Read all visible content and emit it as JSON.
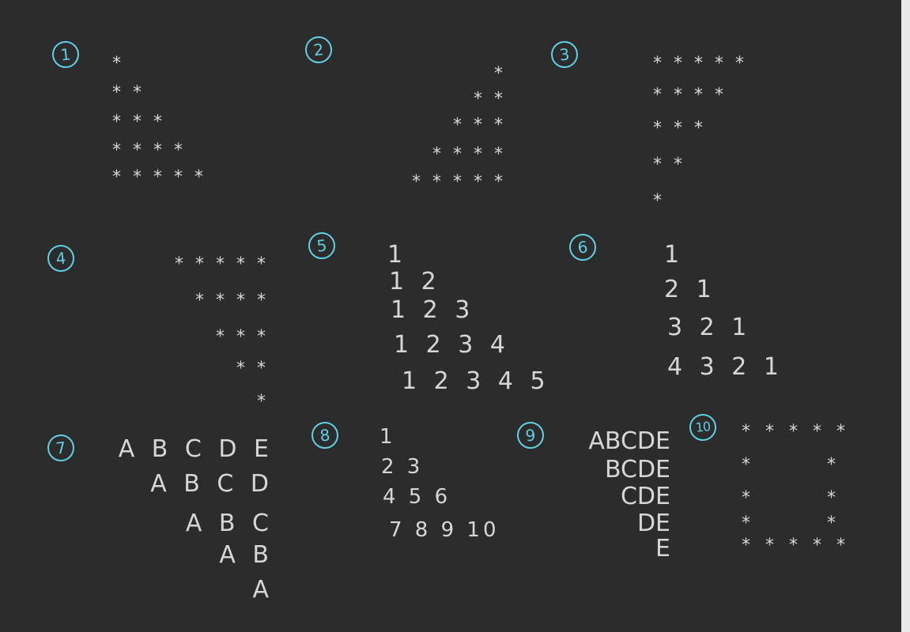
{
  "patterns": [
    {
      "label": "1",
      "rows": [
        "*",
        "* *",
        "* * *",
        "* * * *",
        "* * * * *"
      ]
    },
    {
      "label": "2",
      "rows": [
        "*",
        "* *",
        "* * *",
        "* * * *",
        "* * * * *"
      ]
    },
    {
      "label": "3",
      "rows": [
        "* * * * *",
        "* * * *",
        "* * *",
        "* *",
        "*"
      ]
    },
    {
      "label": "4",
      "rows": [
        "* * * * *",
        "* * * *",
        "* * *",
        "* *",
        "*"
      ]
    },
    {
      "label": "5",
      "rows": [
        "1",
        "1 2",
        "1 2 3",
        "1 2 3 4",
        "1 2 3 4 5"
      ]
    },
    {
      "label": "6",
      "rows": [
        "1",
        "2 1",
        "3 2 1",
        "4 3 2 1"
      ]
    },
    {
      "label": "7",
      "rows": [
        "A B C D E",
        "A B C D",
        "A B C",
        "A B",
        "A"
      ]
    },
    {
      "label": "8",
      "rows": [
        "1",
        "2 3",
        "4 5 6",
        "7 8 9 10"
      ]
    },
    {
      "label": "9",
      "rows": [
        "ABCDE",
        "BCDE",
        "CDE",
        "DE",
        "E"
      ]
    },
    {
      "label": "10",
      "rows": [
        "* * * * *",
        "*       *",
        "*       *",
        "*       *",
        "* * * * *"
      ]
    }
  ]
}
